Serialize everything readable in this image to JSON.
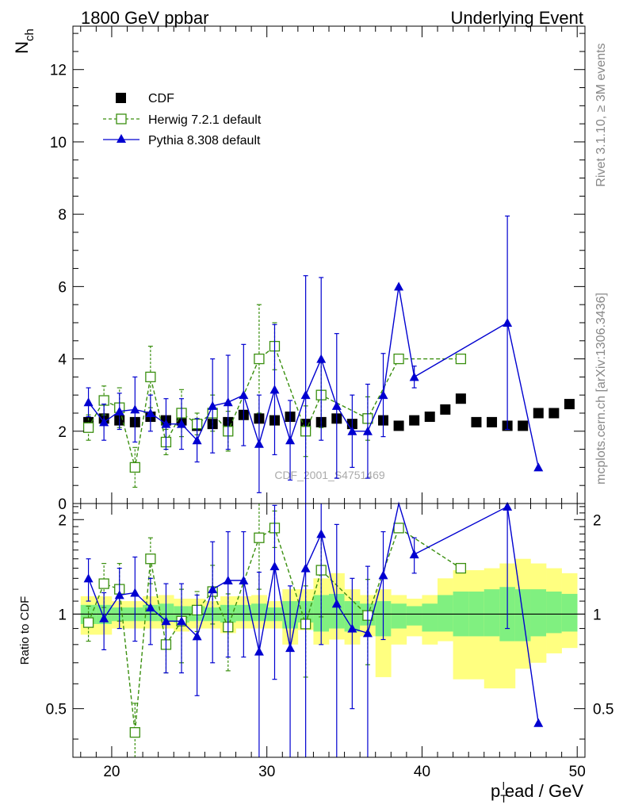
{
  "header": {
    "left": "1800 GeV ppbar",
    "right": "Underlying Event"
  },
  "side": {
    "rivet": "Rivet 3.1.10, ≥ 3M events",
    "mcplots": "mcplots.cern.ch [arXiv:1306.3436]"
  },
  "watermark": "CDF_2001_S4751469",
  "colors": {
    "data": "#000000",
    "herwig": "#3a8f0f",
    "pythia": "#0000d0",
    "band_outer": "#ffff80",
    "band_inner": "#80f080"
  },
  "chart_data": [
    {
      "type": "line",
      "panel": "main",
      "ylabel_main": "N",
      "ylabel_sub": "ch",
      "xlim": [
        17.5,
        50.5
      ],
      "ylim": [
        0,
        13.2
      ],
      "yticks": [
        0,
        2,
        4,
        6,
        8,
        10,
        12
      ],
      "grid": false,
      "legend_position": "top-left",
      "legend": [
        "CDF",
        "Herwig 7.2.1 default",
        "Pythia 8.308 default"
      ],
      "series": [
        {
          "name": "CDF",
          "style": "squares",
          "x": [
            18.5,
            19.5,
            20.5,
            21.5,
            22.5,
            23.5,
            24.5,
            25.5,
            26.5,
            27.5,
            28.5,
            29.5,
            30.5,
            31.5,
            32.5,
            33.5,
            34.5,
            35.5,
            36.5,
            37.5,
            38.5,
            39.5,
            40.5,
            41.5,
            42.5,
            43.5,
            44.5,
            45.5,
            46.5,
            47.5,
            48.5,
            49.5
          ],
          "y": [
            2.25,
            2.35,
            2.3,
            2.25,
            2.4,
            2.3,
            2.3,
            2.15,
            2.2,
            2.25,
            2.45,
            2.35,
            2.3,
            2.4,
            2.2,
            2.25,
            2.35,
            2.2,
            2.35,
            2.3,
            2.15,
            2.3,
            2.4,
            2.6,
            2.9,
            2.25,
            2.25,
            2.15,
            2.15,
            2.5,
            2.5,
            2.75
          ]
        },
        {
          "name": "Herwig 7.2.1 default",
          "style": "dashed-open-squares",
          "x": [
            18.5,
            19.5,
            20.5,
            21.5,
            22.5,
            23.5,
            24.5,
            25.5,
            26.5,
            27.5,
            29.5,
            30.5,
            32.5,
            33.5,
            36.5,
            38.5,
            42.5
          ],
          "y": [
            2.1,
            2.85,
            2.65,
            1.0,
            3.5,
            1.7,
            2.5,
            2.2,
            2.5,
            2.0,
            4.0,
            4.35,
            2.0,
            3.0,
            2.35,
            4.0,
            4.0
          ],
          "err": [
            0.35,
            0.4,
            0.55,
            0.55,
            0.85,
            0.35,
            0.65,
            0.3,
            0.5,
            0.55,
            1.5,
            0.65,
            0.7,
            0.9,
            0.6,
            0,
            0
          ]
        },
        {
          "name": "Pythia 8.308 default",
          "style": "solid-triangles",
          "x": [
            18.5,
            19.5,
            20.5,
            21.5,
            22.5,
            23.5,
            24.5,
            25.5,
            26.5,
            27.5,
            28.5,
            29.5,
            30.5,
            31.5,
            32.5,
            33.5,
            34.5,
            35.5,
            36.5,
            37.5,
            38.5,
            39.5,
            45.5,
            47.5
          ],
          "y": [
            2.8,
            2.25,
            2.55,
            2.6,
            2.5,
            2.2,
            2.2,
            1.75,
            2.7,
            2.8,
            3.0,
            1.65,
            3.15,
            1.75,
            3.0,
            4.0,
            2.7,
            2.0,
            2.0,
            3.0,
            6.0,
            3.5,
            5.0,
            1.0
          ],
          "err": [
            0.4,
            0.5,
            0.5,
            0.9,
            0.5,
            0.7,
            0.7,
            0.6,
            1.3,
            1.3,
            1.4,
            1.35,
            1.8,
            1.1,
            3.3,
            2.25,
            2.0,
            1.0,
            1.3,
            1.15,
            0,
            0.3,
            2.95,
            0
          ]
        }
      ]
    },
    {
      "type": "line",
      "panel": "ratio",
      "ylabel": "Ratio to CDF",
      "xlabel_main": "p",
      "xlabel_sub": "T",
      "xlabel_sup": "l",
      "xlabel_rest": "ead / GeV",
      "xlim": [
        17.5,
        50.5
      ],
      "ylim": [
        0.35,
        2.25
      ],
      "yticks": [
        0.5,
        1,
        2
      ],
      "ytick_labels": [
        "0.5",
        "1",
        "2"
      ],
      "xticks": [
        20,
        30,
        40,
        50
      ],
      "xtick_labels": [
        "20",
        "30",
        "40",
        "50"
      ],
      "reference": 1,
      "band_bins": [
        18,
        19,
        20,
        21,
        22,
        23,
        24,
        25,
        26,
        27,
        28,
        29,
        30,
        31,
        32,
        33,
        34,
        35,
        36,
        37,
        38,
        39,
        40,
        41,
        42,
        43,
        44,
        45,
        46,
        47,
        48,
        49,
        50
      ],
      "band_outer_low": [
        0.86,
        0.86,
        0.9,
        0.9,
        0.9,
        0.9,
        0.88,
        0.9,
        0.9,
        0.87,
        0.9,
        0.9,
        0.9,
        0.8,
        0.89,
        0.8,
        0.83,
        0.8,
        0.85,
        0.63,
        0.8,
        0.85,
        0.8,
        0.82,
        0.62,
        0.62,
        0.58,
        0.58,
        0.67,
        0.7,
        0.75,
        0.78
      ],
      "band_outer_high": [
        1.14,
        1.14,
        1.1,
        1.1,
        1.14,
        1.15,
        1.12,
        1.12,
        1.1,
        1.14,
        1.14,
        1.15,
        1.1,
        1.2,
        1.2,
        1.3,
        1.35,
        1.2,
        1.15,
        1.2,
        1.15,
        1.12,
        1.15,
        1.3,
        1.38,
        1.38,
        1.4,
        1.45,
        1.5,
        1.45,
        1.4,
        1.35
      ],
      "band_inner_low": [
        0.93,
        0.93,
        0.95,
        0.95,
        0.95,
        0.95,
        0.94,
        0.95,
        0.95,
        0.94,
        0.95,
        0.95,
        0.95,
        0.9,
        0.94,
        0.88,
        0.9,
        0.88,
        0.92,
        0.85,
        0.9,
        0.92,
        0.88,
        0.88,
        0.85,
        0.85,
        0.85,
        0.82,
        0.82,
        0.85,
        0.87,
        0.88
      ],
      "band_inner_high": [
        1.07,
        1.07,
        1.05,
        1.05,
        1.07,
        1.08,
        1.06,
        1.06,
        1.05,
        1.07,
        1.07,
        1.08,
        1.05,
        1.1,
        1.1,
        1.15,
        1.16,
        1.1,
        1.08,
        1.1,
        1.08,
        1.06,
        1.08,
        1.15,
        1.18,
        1.18,
        1.2,
        1.22,
        1.2,
        1.2,
        1.18,
        1.16
      ],
      "series": [
        {
          "name": "Herwig 7.2.1 default",
          "style": "dashed-open-squares",
          "x": [
            18.5,
            19.5,
            20.5,
            21.5,
            22.5,
            23.5,
            24.5,
            25.5,
            26.5,
            27.5,
            29.5,
            30.5,
            32.5,
            33.5,
            36.5,
            38.5,
            42.5
          ],
          "y": [
            0.94,
            1.25,
            1.2,
            0.42,
            1.5,
            0.8,
            0.95,
            1.03,
            1.18,
            0.91,
            1.75,
            1.88,
            0.93,
            1.38,
            0.99,
            1.88,
            1.4
          ],
          "err": [
            0.12,
            0.2,
            0.25,
            0.1,
            0.25,
            0.15,
            0.25,
            0.15,
            0.25,
            0.25,
            0.55,
            0.25,
            0.3,
            0.4,
            0.3,
            0,
            0
          ]
        },
        {
          "name": "Pythia 8.308 default",
          "style": "solid-triangles",
          "x": [
            18.5,
            19.5,
            20.5,
            21.5,
            22.5,
            23.5,
            24.5,
            25.5,
            26.5,
            27.5,
            28.5,
            29.5,
            30.5,
            31.5,
            32.5,
            33.5,
            34.5,
            35.5,
            36.5,
            37.5,
            38.5,
            39.5,
            45.5,
            47.5
          ],
          "y": [
            1.3,
            0.97,
            1.15,
            1.17,
            1.05,
            0.95,
            0.95,
            0.85,
            1.2,
            1.28,
            1.28,
            0.76,
            1.42,
            0.78,
            1.4,
            1.8,
            1.08,
            0.9,
            0.87,
            1.33,
            2.3,
            1.55,
            2.2,
            0.45
          ],
          "err": [
            0.2,
            0.2,
            0.25,
            0.35,
            0.25,
            0.3,
            0.3,
            0.3,
            0.5,
            0.55,
            0.55,
            0.6,
            0.8,
            0.45,
            1.5,
            1.0,
            0.85,
            0.4,
            0.55,
            0.5,
            0,
            0.2,
            1.3,
            0
          ]
        }
      ]
    }
  ]
}
